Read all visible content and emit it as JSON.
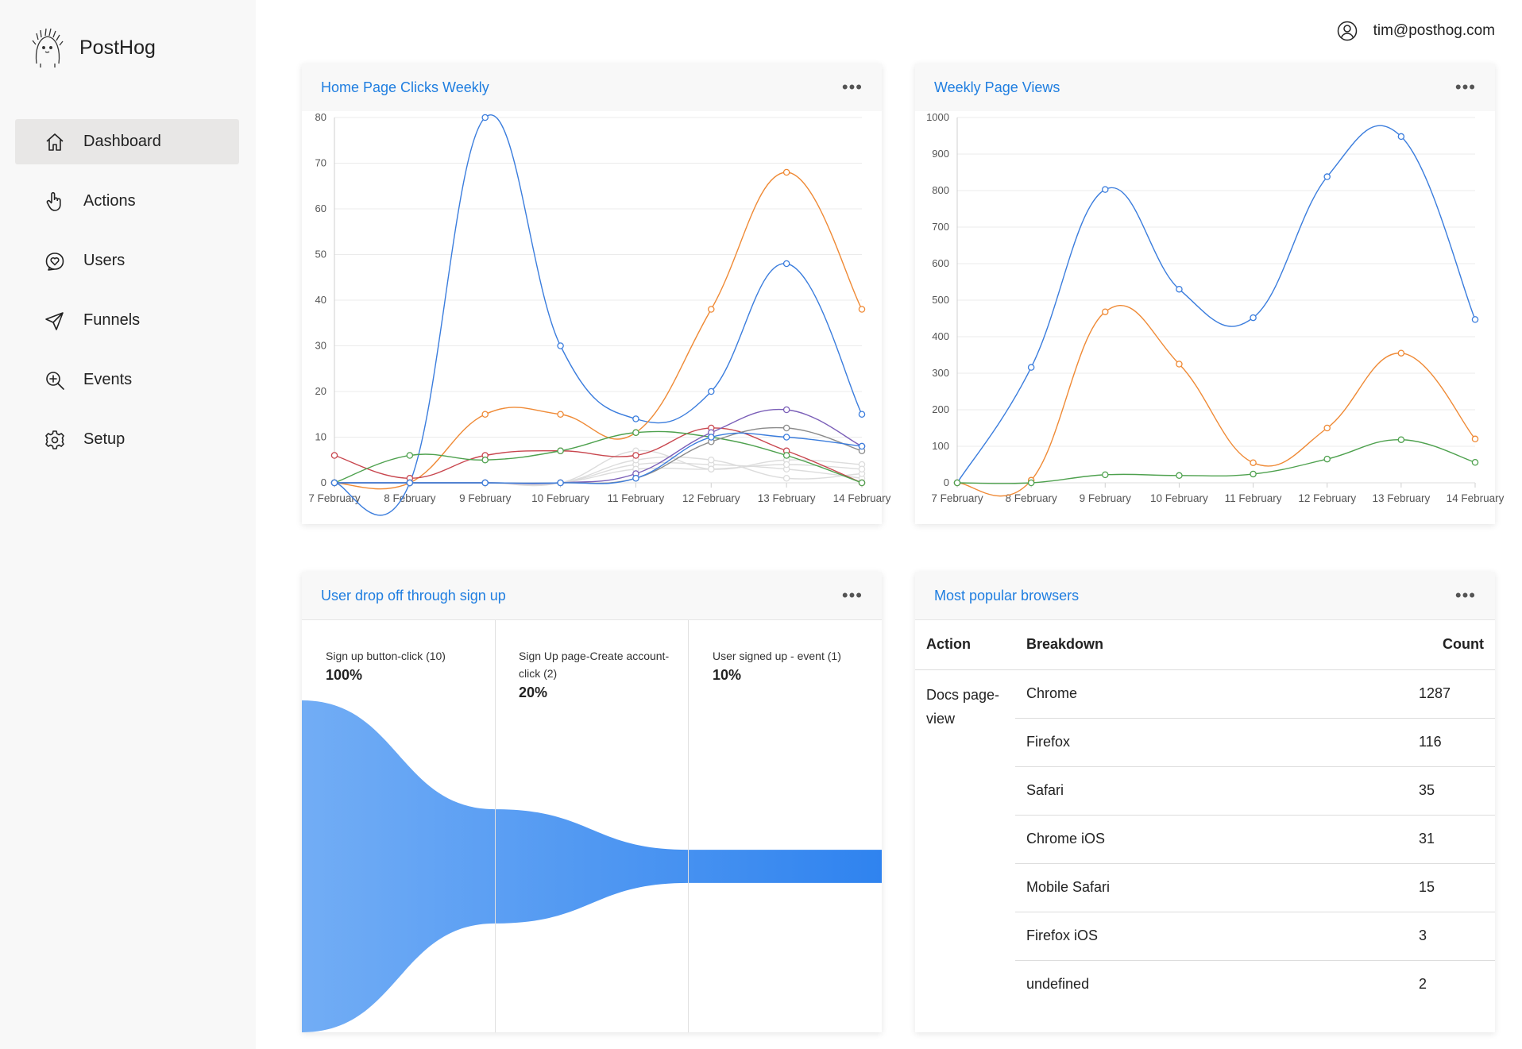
{
  "app": {
    "name": "PostHog"
  },
  "sidebar": {
    "items": [
      {
        "label": "Dashboard",
        "icon": "home-icon",
        "active": true
      },
      {
        "label": "Actions",
        "icon": "pointer-icon",
        "active": false
      },
      {
        "label": "Users",
        "icon": "user-heart-icon",
        "active": false
      },
      {
        "label": "Funnels",
        "icon": "send-icon",
        "active": false
      },
      {
        "label": "Events",
        "icon": "zoom-in-icon",
        "active": false
      },
      {
        "label": "Setup",
        "icon": "gear-icon",
        "active": false
      }
    ]
  },
  "header": {
    "user_email": "tim@posthog.com"
  },
  "cards": {
    "clicks": {
      "title": "Home Page Clicks Weekly",
      "menu": "•••"
    },
    "views": {
      "title": "Weekly Page Views",
      "menu": "•••"
    },
    "funnel": {
      "title": "User drop off through sign up",
      "menu": "•••"
    },
    "browsers": {
      "title": "Most popular browsers",
      "menu": "•••"
    }
  },
  "chart_data": [
    {
      "type": "line",
      "title": "Home Page Clicks Weekly",
      "categories": [
        "7 February",
        "8 February",
        "9 February",
        "10 February",
        "11 February",
        "12 February",
        "13 February",
        "14 February"
      ],
      "ylim": [
        0,
        80
      ],
      "yticks": [
        0,
        10,
        20,
        30,
        40,
        50,
        60,
        70,
        80
      ],
      "grid": true,
      "series": [
        {
          "color": "#3b7ddd",
          "values": [
            0,
            0,
            80,
            30,
            14,
            20,
            48,
            15
          ]
        },
        {
          "color": "#ef8a36",
          "values": [
            0,
            0,
            15,
            15,
            11,
            38,
            68,
            38
          ]
        },
        {
          "color": "#c8464e",
          "values": [
            6,
            1,
            6,
            7,
            6,
            12,
            7,
            0
          ]
        },
        {
          "color": "#4ea14e",
          "values": [
            0,
            6,
            5,
            7,
            11,
            10,
            6,
            0
          ]
        },
        {
          "color": "#7b5fb8",
          "values": [
            0,
            0,
            0,
            0,
            2,
            11,
            16,
            8
          ]
        },
        {
          "color": "#8a8a8a",
          "values": [
            0,
            0,
            0,
            0,
            1,
            9,
            12,
            7
          ]
        },
        {
          "color": "#3b7ddd",
          "values": [
            0,
            0,
            0,
            0,
            1,
            10,
            10,
            8
          ]
        },
        {
          "color": "#dcdcdc",
          "values": [
            0,
            0,
            0,
            0,
            4,
            4,
            3,
            1
          ]
        },
        {
          "color": "#dcdcdc",
          "values": [
            0,
            0,
            0,
            0,
            7,
            3,
            5,
            4
          ]
        },
        {
          "color": "#dcdcdc",
          "values": [
            0,
            0,
            0,
            0,
            5,
            5,
            1,
            2
          ]
        },
        {
          "color": "#dcdcdc",
          "values": [
            0,
            0,
            0,
            0,
            3,
            3,
            4,
            3
          ]
        }
      ]
    },
    {
      "type": "line",
      "title": "Weekly Page Views",
      "categories": [
        "7 February",
        "8 February",
        "9 February",
        "10 February",
        "11 February",
        "12 February",
        "13 February",
        "14 February"
      ],
      "ylim": [
        0,
        1000
      ],
      "yticks": [
        0,
        100,
        200,
        300,
        400,
        500,
        600,
        700,
        800,
        900,
        1000
      ],
      "grid": true,
      "series": [
        {
          "color": "#3b7ddd",
          "values": [
            0,
            316,
            803,
            530,
            452,
            838,
            948,
            447
          ]
        },
        {
          "color": "#ef8a36",
          "values": [
            0,
            7,
            468,
            325,
            55,
            150,
            355,
            120
          ]
        },
        {
          "color": "#4ea14e",
          "values": [
            0,
            0,
            22,
            20,
            24,
            65,
            118,
            56
          ]
        }
      ]
    }
  ],
  "funnel": {
    "steps": [
      {
        "label": "Sign up button-click (10)",
        "percent": "100%",
        "value": 1.0
      },
      {
        "label": "Sign Up page-Create account-click (2)",
        "percent": "20%",
        "value": 0.2
      },
      {
        "label": "User signed up - event (1)",
        "percent": "10%",
        "value": 0.1
      }
    ]
  },
  "browsers": {
    "headers": {
      "action": "Action",
      "breakdown": "Breakdown",
      "count": "Count"
    },
    "action": "Docs page-view",
    "rows": [
      {
        "breakdown": "Chrome",
        "count": "1287"
      },
      {
        "breakdown": "Firefox",
        "count": "116"
      },
      {
        "breakdown": "Safari",
        "count": "35"
      },
      {
        "breakdown": "Chrome iOS",
        "count": "31"
      },
      {
        "breakdown": "Mobile Safari",
        "count": "15"
      },
      {
        "breakdown": "Firefox iOS",
        "count": "3"
      },
      {
        "breakdown": "undefined",
        "count": "2"
      }
    ]
  }
}
